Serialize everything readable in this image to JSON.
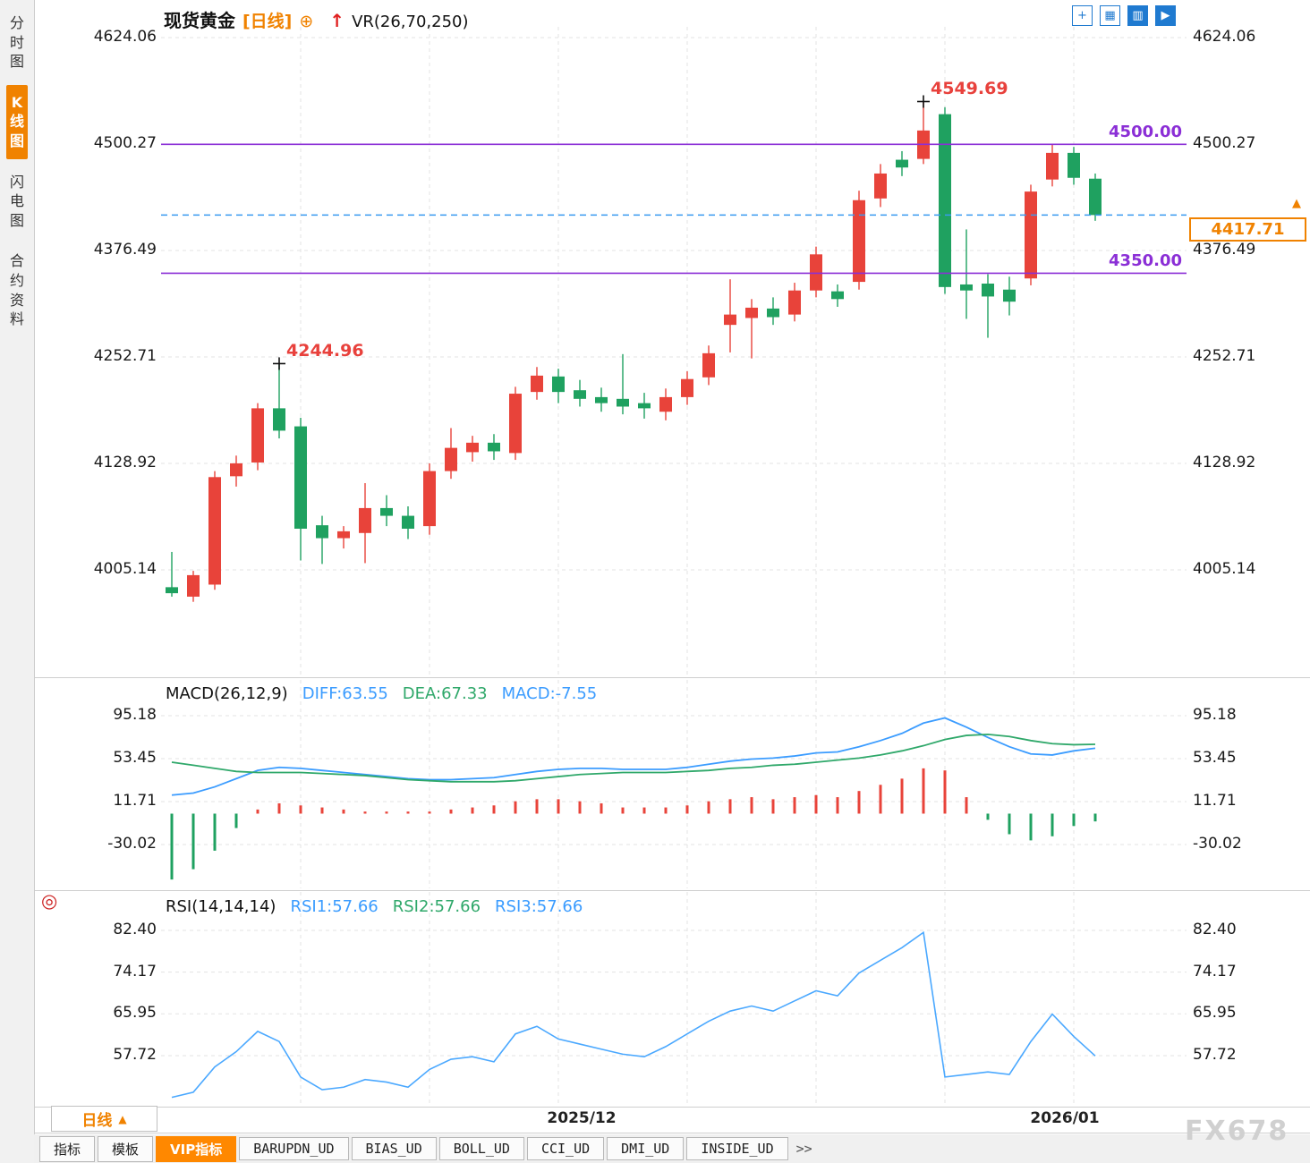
{
  "header": {
    "symbol": "现货黄金",
    "period": "[日线]",
    "add_icon": "⊕",
    "trend_arrow": "↑",
    "indicator": "VR(26,70,250)"
  },
  "toolbar_icons": [
    {
      "name": "crosshair-icon",
      "glyph": "+"
    },
    {
      "name": "grid-icon",
      "glyph": "▦"
    },
    {
      "name": "bar-chart-icon",
      "glyph": "▥"
    },
    {
      "name": "panel-split-icon",
      "glyph": "▶"
    }
  ],
  "sidebar": {
    "items": [
      {
        "label": "分时图",
        "active": false
      },
      {
        "label": "K线图",
        "active": true
      },
      {
        "label": "闪电图",
        "active": false
      },
      {
        "label": "合约资料",
        "active": false
      }
    ],
    "target_icon": "◎"
  },
  "macd_panel": {
    "title": "MACD(26,12,9)",
    "diff_label": "DIFF:63.55",
    "dea_label": "DEA:67.33",
    "macd_label": "MACD:-7.55"
  },
  "rsi_panel": {
    "title": "RSI(14,14,14)",
    "rsi1_label": "RSI1:57.66",
    "rsi2_label": "RSI2:57.66",
    "rsi3_label": "RSI3:57.66"
  },
  "timeframe": {
    "label": "日线",
    "arrow": "▲"
  },
  "bottom_bar": {
    "tabs": [
      {
        "label": "指标",
        "active": false,
        "mono": false
      },
      {
        "label": "模板",
        "active": false,
        "mono": false
      },
      {
        "label": "VIP指标",
        "active": true,
        "mono": false
      },
      {
        "label": "BARUPDN_UD",
        "active": false,
        "mono": true
      },
      {
        "label": "BIAS_UD",
        "active": false,
        "mono": true
      },
      {
        "label": "BOLL_UD",
        "active": false,
        "mono": true
      },
      {
        "label": "CCI_UD",
        "active": false,
        "mono": true
      },
      {
        "label": "DMI_UD",
        "active": false,
        "mono": true
      },
      {
        "label": "INSIDE_UD",
        "active": false,
        "mono": true
      }
    ],
    "pager": ">>"
  },
  "watermark": "FX678",
  "colors": {
    "up": "#e8433a",
    "down": "#1fa160",
    "purple": "#8B2FD6",
    "current": "#3a9af0",
    "orange": "#f08200",
    "diff_line": "#3b9cff",
    "dea_line": "#2fa86a",
    "rsi_line": "#4aa8ff",
    "grid": "#e3e3e3"
  },
  "chart_data": [
    {
      "type": "candlestick",
      "title": "现货黄金 [日线]",
      "y_ticks": [
        "4624.06",
        "4500.27",
        "4376.49",
        "4252.71",
        "4128.92",
        "4005.14"
      ],
      "x_tick_labels": [
        "2025/12",
        "2026/01"
      ],
      "hlines": [
        "4500.00",
        "4350.00"
      ],
      "last_price": "4417.71",
      "annotations": [
        {
          "index": 5,
          "price": 4244.96,
          "label": "4244.96"
        },
        {
          "index": 35,
          "price": 4549.69,
          "label": "4549.69"
        }
      ],
      "ohlc": [
        [
          3985,
          4026,
          3974,
          3978
        ],
        [
          3974,
          4004,
          3968,
          3999
        ],
        [
          3988,
          4120,
          3982,
          4113
        ],
        [
          4114,
          4138,
          4102,
          4129
        ],
        [
          4130,
          4199,
          4121,
          4193
        ],
        [
          4193,
          4244.96,
          4158,
          4167
        ],
        [
          4172,
          4182,
          4016,
          4053
        ],
        [
          4057,
          4068,
          4012,
          4042
        ],
        [
          4042,
          4056,
          4030,
          4050
        ],
        [
          4048,
          4106,
          4013,
          4077
        ],
        [
          4077,
          4092,
          4056,
          4068
        ],
        [
          4068,
          4079,
          4041,
          4053
        ],
        [
          4056,
          4129,
          4046,
          4120
        ],
        [
          4120,
          4170,
          4111,
          4147
        ],
        [
          4142,
          4161,
          4131,
          4153
        ],
        [
          4153,
          4163,
          4133,
          4143
        ],
        [
          4141,
          4218,
          4133,
          4210
        ],
        [
          4212,
          4241,
          4203,
          4231
        ],
        [
          4230,
          4239,
          4199,
          4212
        ],
        [
          4214,
          4226,
          4195,
          4204
        ],
        [
          4206,
          4217,
          4189,
          4199
        ],
        [
          4204,
          4256,
          4186,
          4195
        ],
        [
          4199,
          4211,
          4181,
          4193
        ],
        [
          4189,
          4216,
          4179,
          4206
        ],
        [
          4206,
          4236,
          4197,
          4227
        ],
        [
          4229,
          4266,
          4220,
          4257
        ],
        [
          4290,
          4343,
          4258,
          4302
        ],
        [
          4298,
          4320,
          4251,
          4310
        ],
        [
          4309,
          4322,
          4290,
          4299
        ],
        [
          4302,
          4339,
          4294,
          4330
        ],
        [
          4330,
          4381,
          4322,
          4372
        ],
        [
          4329,
          4337,
          4311,
          4320
        ],
        [
          4340,
          4446,
          4331,
          4435
        ],
        [
          4437,
          4477,
          4427,
          4466
        ],
        [
          4482,
          4492,
          4463,
          4473
        ],
        [
          4483,
          4549.69,
          4477,
          4516
        ],
        [
          4535,
          4543,
          4326,
          4334
        ],
        [
          4337,
          4401,
          4297,
          4330
        ],
        [
          4338,
          4349,
          4275,
          4323
        ],
        [
          4331,
          4346,
          4301,
          4317
        ],
        [
          4344,
          4453,
          4336,
          4445
        ],
        [
          4459,
          4500,
          4451,
          4490
        ],
        [
          4490,
          4497,
          4453,
          4461
        ],
        [
          4460,
          4466,
          4411,
          4417.71
        ]
      ]
    },
    {
      "type": "macd",
      "y_ticks": [
        "95.18",
        "53.45",
        "11.71",
        "-30.02"
      ],
      "histogram_formula": "2*(diff-dea)",
      "diff": [
        18,
        20,
        26,
        34,
        42,
        45,
        44,
        42,
        40,
        38,
        36,
        34,
        33,
        33,
        34,
        35,
        38,
        41,
        43,
        44,
        44,
        43,
        43,
        43,
        45,
        48,
        51,
        53,
        54,
        56,
        59,
        60,
        65,
        71,
        78,
        88,
        93,
        84,
        74,
        65,
        58,
        57,
        61,
        63.55
      ],
      "dea": [
        50,
        47,
        44,
        41,
        40,
        40,
        40,
        39,
        38,
        37,
        35,
        33,
        32,
        31,
        31,
        31,
        32,
        34,
        36,
        38,
        39,
        40,
        40,
        40,
        41,
        42,
        44,
        45,
        47,
        48,
        50,
        52,
        54,
        57,
        61,
        66,
        72,
        76,
        77,
        75,
        71,
        68,
        67,
        67.33
      ]
    },
    {
      "type": "line",
      "name": "RSI",
      "y_ticks": [
        "82.40",
        "74.17",
        "65.95",
        "57.72"
      ],
      "values": [
        49.5,
        50.5,
        55.5,
        58.5,
        62.5,
        60.5,
        53.5,
        51.0,
        51.5,
        53.0,
        52.5,
        51.5,
        55.0,
        57.0,
        57.5,
        56.5,
        62.0,
        63.5,
        61.0,
        60.0,
        59.0,
        58.0,
        57.5,
        59.5,
        62.0,
        64.5,
        66.5,
        67.5,
        66.5,
        68.5,
        70.5,
        69.5,
        74.0,
        76.5,
        79.0,
        82.0,
        53.5,
        54.0,
        54.5,
        54.0,
        60.5,
        65.9,
        61.5,
        57.66
      ]
    }
  ]
}
